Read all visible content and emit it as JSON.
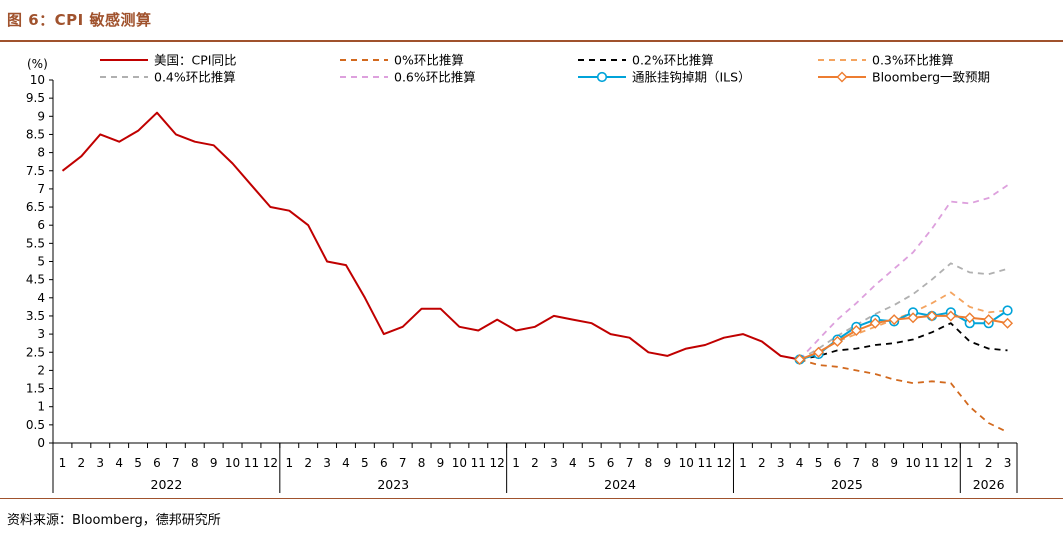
{
  "figure_title": "图 6：CPI 敏感测算",
  "source_note": "资料来源：Bloomberg，德邦研究所",
  "chart_data": {
    "type": "line",
    "title": "CPI 敏感测算",
    "ylabel": "(%)",
    "ylim": [
      0,
      10
    ],
    "yticks": [
      0,
      0.5,
      1,
      1.5,
      2,
      2.5,
      3,
      3.5,
      4,
      4.5,
      5,
      5.5,
      6,
      6.5,
      7,
      7.5,
      8,
      8.5,
      9,
      9.5,
      10
    ],
    "ytick_labels": [
      "0",
      "0.5",
      "1",
      "1.5",
      "2",
      "2.5",
      "3",
      "3.5",
      "4",
      "4.5",
      "5",
      "5.5",
      "6",
      "6.5",
      "7",
      "7.5",
      "8",
      "8.5",
      "9",
      "9.5",
      "10"
    ],
    "x_month_labels": [
      "1",
      "2",
      "3",
      "4",
      "5",
      "6",
      "7",
      "8",
      "9",
      "10",
      "11",
      "12",
      "1",
      "2",
      "3",
      "4",
      "5",
      "6",
      "7",
      "8",
      "9",
      "10",
      "11",
      "12",
      "1",
      "2",
      "3",
      "4",
      "5",
      "6",
      "7",
      "8",
      "9",
      "10",
      "11",
      "12",
      "1",
      "2",
      "3",
      "4",
      "5",
      "6",
      "7",
      "8",
      "9",
      "10",
      "11",
      "12",
      "1",
      "2",
      "3"
    ],
    "x_year_groups": [
      {
        "label": "2022",
        "start": 0,
        "end": 11
      },
      {
        "label": "2023",
        "start": 12,
        "end": 23
      },
      {
        "label": "2024",
        "start": 24,
        "end": 35
      },
      {
        "label": "2025",
        "start": 36,
        "end": 47
      },
      {
        "label": "2026",
        "start": 48,
        "end": 50
      }
    ],
    "legend_position": "top",
    "series": [
      {
        "name": "美国：CPI同比",
        "color": "#c00000",
        "style": "solid",
        "marker": "none",
        "start_index": 0,
        "values": [
          7.5,
          7.9,
          8.5,
          8.3,
          8.6,
          9.1,
          8.5,
          8.3,
          8.2,
          7.7,
          7.1,
          6.5,
          6.4,
          6.0,
          5.0,
          4.9,
          4.0,
          3.0,
          3.2,
          3.7,
          3.7,
          3.2,
          3.1,
          3.4,
          3.1,
          3.2,
          3.5,
          3.4,
          3.3,
          3.0,
          2.9,
          2.5,
          2.4,
          2.6,
          2.7,
          2.9,
          3.0,
          2.8,
          2.4,
          2.3
        ]
      },
      {
        "name": "0%环比推算",
        "color": "#d2691e",
        "style": "dashed",
        "marker": "none",
        "start_index": 39,
        "values": [
          2.3,
          2.15,
          2.1,
          2.0,
          1.9,
          1.75,
          1.65,
          1.7,
          1.65,
          1.0,
          0.55,
          0.3
        ]
      },
      {
        "name": "0.2%环比推算",
        "color": "#000000",
        "style": "dashed",
        "marker": "none",
        "start_index": 39,
        "values": [
          2.3,
          2.4,
          2.55,
          2.6,
          2.7,
          2.75,
          2.85,
          3.05,
          3.3,
          2.8,
          2.6,
          2.55
        ]
      },
      {
        "name": "0.3%环比推算",
        "color": "#f4a460",
        "style": "dashed",
        "marker": "none",
        "start_index": 39,
        "values": [
          2.3,
          2.5,
          2.8,
          3.0,
          3.2,
          3.4,
          3.6,
          3.85,
          4.15,
          3.75,
          3.6,
          3.65
        ]
      },
      {
        "name": "0.4%环比推算",
        "color": "#b0b0b0",
        "style": "dashed",
        "marker": "none",
        "start_index": 39,
        "values": [
          2.3,
          2.6,
          2.95,
          3.25,
          3.55,
          3.8,
          4.1,
          4.5,
          4.95,
          4.7,
          4.65,
          4.8
        ]
      },
      {
        "name": "0.6%环比推算",
        "color": "#dda0dd",
        "style": "dashed",
        "marker": "none",
        "start_index": 39,
        "values": [
          2.3,
          2.85,
          3.4,
          3.85,
          4.35,
          4.8,
          5.25,
          5.9,
          6.65,
          6.6,
          6.75,
          7.1
        ]
      },
      {
        "name": "通胀挂钩掉期（ILS）",
        "color": "#00a3d9",
        "style": "solid",
        "marker": "circle",
        "start_index": 39,
        "values": [
          2.3,
          2.45,
          2.85,
          3.2,
          3.4,
          3.35,
          3.6,
          3.5,
          3.6,
          3.3,
          3.3,
          3.65
        ]
      },
      {
        "name": "Bloomberg一致预期",
        "color": "#ed7d31",
        "style": "solid",
        "marker": "diamond",
        "start_index": 39,
        "values": [
          2.3,
          2.5,
          2.8,
          3.1,
          3.3,
          3.4,
          3.45,
          3.5,
          3.5,
          3.45,
          3.4,
          3.3
        ]
      }
    ]
  }
}
